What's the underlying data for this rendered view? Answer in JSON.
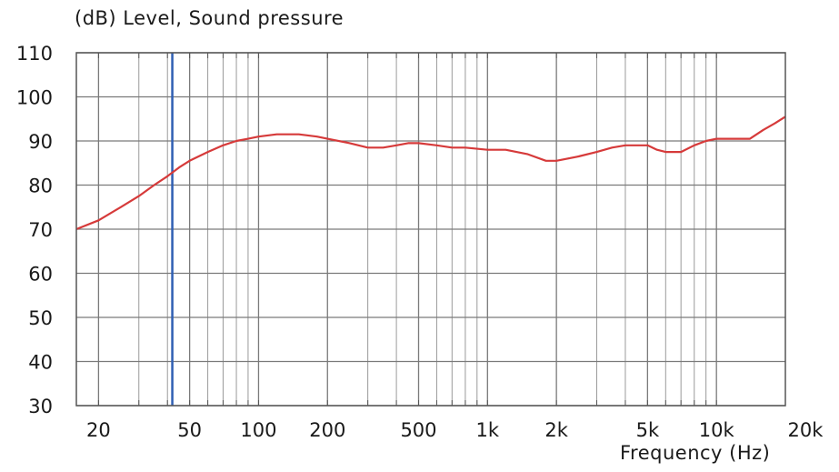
{
  "chart_data": {
    "type": "line",
    "title": "",
    "ylabel": "(dB)  Level, Sound pressure",
    "xlabel": "Frequency  (Hz)",
    "x_scale": "log",
    "xlim": [
      16,
      20000
    ],
    "ylim": [
      30,
      110
    ],
    "grid": true,
    "x_tick_labels": [
      {
        "value": 20,
        "label": "20"
      },
      {
        "value": 50,
        "label": "50"
      },
      {
        "value": 100,
        "label": "100"
      },
      {
        "value": 200,
        "label": "200"
      },
      {
        "value": 500,
        "label": "500"
      },
      {
        "value": 1000,
        "label": "1k"
      },
      {
        "value": 2000,
        "label": "2k"
      },
      {
        "value": 5000,
        "label": "5k"
      },
      {
        "value": 10000,
        "label": "10k"
      },
      {
        "value": 20000,
        "label": "20k"
      }
    ],
    "y_tick_labels": [
      {
        "value": 110,
        "label": "110"
      },
      {
        "value": 100,
        "label": "100"
      },
      {
        "value": 90,
        "label": "90"
      },
      {
        "value": 80,
        "label": "80"
      },
      {
        "value": 70,
        "label": "70"
      },
      {
        "value": 60,
        "label": "60"
      },
      {
        "value": 50,
        "label": "50"
      },
      {
        "value": 40,
        "label": "40"
      },
      {
        "value": 30,
        "label": "30"
      }
    ],
    "marker_line": {
      "x": 42,
      "color": "#2f5fb3"
    },
    "series": [
      {
        "color": "#d63a3a",
        "x": [
          16,
          20,
          25,
          30,
          35,
          40,
          45,
          50,
          60,
          70,
          80,
          90,
          100,
          120,
          150,
          180,
          200,
          250,
          300,
          350,
          400,
          450,
          500,
          600,
          700,
          800,
          1000,
          1200,
          1500,
          1800,
          2000,
          2500,
          3000,
          3500,
          4000,
          4500,
          5000,
          5500,
          6000,
          7000,
          8000,
          9000,
          10000,
          11000,
          12000,
          14000,
          16000,
          18000,
          20000
        ],
        "y": [
          70,
          72,
          75,
          77.5,
          80,
          82,
          84,
          85.5,
          87.5,
          89,
          90,
          90.5,
          91,
          91.5,
          91.5,
          91,
          90.5,
          89.5,
          88.5,
          88.5,
          89,
          89.5,
          89.5,
          89,
          88.5,
          88.5,
          88,
          88,
          87,
          85.5,
          85.5,
          86.5,
          87.5,
          88.5,
          89,
          89,
          89,
          88,
          87.5,
          87.5,
          89,
          90,
          90.5,
          90.5,
          90.5,
          90.5,
          92.5,
          94,
          95.5
        ]
      }
    ]
  }
}
